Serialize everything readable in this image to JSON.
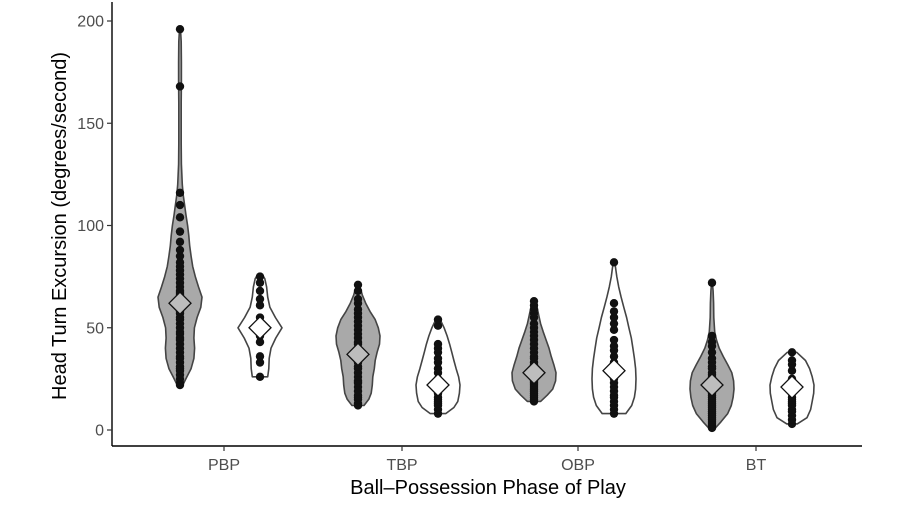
{
  "chart_data": {
    "type": "violin",
    "xlabel": "Ball–Possession Phase of Play",
    "ylabel": "Head Turn Excursion (degrees/second)",
    "categories": [
      "PBP",
      "TBP",
      "OBP",
      "BT"
    ],
    "yticks": [
      0,
      50,
      100,
      150,
      200
    ],
    "ylim": [
      -8,
      205
    ],
    "grid": false,
    "groups": [
      {
        "category": "PBP",
        "series": "grey",
        "fill": "#a9a9a9",
        "mean": 62,
        "min": 22,
        "max": 196,
        "density": [
          [
            22,
            0.12
          ],
          [
            26,
            0.3
          ],
          [
            30,
            0.48
          ],
          [
            35,
            0.6
          ],
          [
            40,
            0.63
          ],
          [
            45,
            0.6
          ],
          [
            50,
            0.62
          ],
          [
            55,
            0.74
          ],
          [
            60,
            0.9
          ],
          [
            65,
            0.95
          ],
          [
            70,
            0.8
          ],
          [
            75,
            0.66
          ],
          [
            80,
            0.55
          ],
          [
            85,
            0.48
          ],
          [
            90,
            0.42
          ],
          [
            95,
            0.38
          ],
          [
            100,
            0.33
          ],
          [
            105,
            0.26
          ],
          [
            110,
            0.2
          ],
          [
            115,
            0.14
          ],
          [
            120,
            0.1
          ],
          [
            130,
            0.06
          ],
          [
            140,
            0.05
          ],
          [
            150,
            0.05
          ],
          [
            160,
            0.05
          ],
          [
            170,
            0.06
          ],
          [
            180,
            0.06
          ],
          [
            190,
            0.05
          ],
          [
            196,
            0.02
          ]
        ],
        "points": [
          22,
          23,
          25,
          27,
          29,
          30,
          31,
          33,
          35,
          36,
          38,
          40,
          42,
          44,
          45,
          47,
          48,
          50,
          52,
          54,
          55,
          57,
          58,
          60,
          61,
          62,
          63,
          64,
          65,
          66,
          67,
          68,
          70,
          72,
          74,
          76,
          78,
          80,
          82,
          85,
          88,
          92,
          97,
          104,
          110,
          116,
          168,
          196
        ]
      },
      {
        "category": "PBP",
        "series": "white",
        "fill": "#ffffff",
        "mean": 50,
        "min": 26,
        "max": 76,
        "density": [
          [
            26,
            0.35
          ],
          [
            30,
            0.4
          ],
          [
            35,
            0.42
          ],
          [
            40,
            0.5
          ],
          [
            45,
            0.72
          ],
          [
            50,
            1.0
          ],
          [
            55,
            0.7
          ],
          [
            60,
            0.45
          ],
          [
            65,
            0.35
          ],
          [
            70,
            0.3
          ],
          [
            74,
            0.22
          ],
          [
            76,
            0.1
          ]
        ],
        "points": [
          26,
          33,
          36,
          43,
          46,
          48,
          50,
          52,
          55,
          61,
          64,
          68,
          72,
          75
        ]
      },
      {
        "category": "TBP",
        "series": "grey",
        "fill": "#a9a9a9",
        "mean": 37,
        "min": 12,
        "max": 71,
        "density": [
          [
            12,
            0.25
          ],
          [
            15,
            0.45
          ],
          [
            18,
            0.55
          ],
          [
            22,
            0.6
          ],
          [
            26,
            0.62
          ],
          [
            30,
            0.68
          ],
          [
            34,
            0.72
          ],
          [
            38,
            0.8
          ],
          [
            42,
            0.9
          ],
          [
            46,
            0.92
          ],
          [
            50,
            0.85
          ],
          [
            54,
            0.72
          ],
          [
            58,
            0.5
          ],
          [
            62,
            0.32
          ],
          [
            66,
            0.18
          ],
          [
            71,
            0.06
          ]
        ],
        "points": [
          12,
          13,
          15,
          16,
          17,
          19,
          21,
          23,
          24,
          26,
          28,
          30,
          31,
          33,
          35,
          36,
          38,
          40,
          42,
          43,
          45,
          47,
          49,
          51,
          53,
          55,
          57,
          59,
          62,
          64,
          68,
          71
        ]
      },
      {
        "category": "TBP",
        "series": "white",
        "fill": "#ffffff",
        "mean": 22,
        "min": 8,
        "max": 54,
        "density": [
          [
            8,
            0.28
          ],
          [
            11,
            0.58
          ],
          [
            14,
            0.72
          ],
          [
            18,
            0.78
          ],
          [
            22,
            0.8
          ],
          [
            26,
            0.75
          ],
          [
            30,
            0.66
          ],
          [
            34,
            0.58
          ],
          [
            38,
            0.5
          ],
          [
            42,
            0.42
          ],
          [
            46,
            0.33
          ],
          [
            50,
            0.22
          ],
          [
            54,
            0.08
          ]
        ],
        "points": [
          8,
          10,
          12,
          13,
          14,
          15,
          16,
          18,
          20,
          22,
          25,
          28,
          30,
          33,
          35,
          38,
          40,
          42,
          51,
          54
        ]
      },
      {
        "category": "OBP",
        "series": "grey",
        "fill": "#a9a9a9",
        "mean": 28,
        "min": 14,
        "max": 63,
        "density": [
          [
            14,
            0.3
          ],
          [
            17,
            0.6
          ],
          [
            20,
            0.85
          ],
          [
            24,
            0.98
          ],
          [
            28,
            1.0
          ],
          [
            32,
            0.9
          ],
          [
            36,
            0.78
          ],
          [
            40,
            0.68
          ],
          [
            44,
            0.55
          ],
          [
            48,
            0.42
          ],
          [
            52,
            0.3
          ],
          [
            56,
            0.22
          ],
          [
            60,
            0.14
          ],
          [
            63,
            0.05
          ]
        ],
        "points": [
          14,
          15,
          16,
          17,
          18,
          19,
          20,
          21,
          22,
          23,
          24,
          25,
          26,
          27,
          28,
          29,
          30,
          31,
          32,
          33,
          35,
          36,
          38,
          40,
          42,
          44,
          46,
          48,
          50,
          52,
          55,
          57,
          59,
          61,
          63
        ]
      },
      {
        "category": "OBP",
        "series": "white",
        "fill": "#ffffff",
        "mean": 29,
        "min": 8,
        "max": 82,
        "density": [
          [
            8,
            0.3
          ],
          [
            12,
            0.45
          ],
          [
            16,
            0.52
          ],
          [
            20,
            0.55
          ],
          [
            25,
            0.56
          ],
          [
            30,
            0.55
          ],
          [
            35,
            0.52
          ],
          [
            40,
            0.48
          ],
          [
            45,
            0.44
          ],
          [
            50,
            0.38
          ],
          [
            55,
            0.32
          ],
          [
            60,
            0.25
          ],
          [
            65,
            0.18
          ],
          [
            70,
            0.12
          ],
          [
            75,
            0.07
          ],
          [
            82,
            0.02
          ]
        ],
        "points": [
          8,
          10,
          12,
          14,
          16,
          17,
          19,
          21,
          23,
          25,
          27,
          30,
          33,
          36,
          39,
          41,
          44,
          49,
          52,
          55,
          58,
          62,
          82
        ]
      },
      {
        "category": "BT",
        "series": "grey",
        "fill": "#a9a9a9",
        "mean": 22,
        "min": 1,
        "max": 72,
        "density": [
          [
            1,
            0.15
          ],
          [
            4,
            0.4
          ],
          [
            8,
            0.7
          ],
          [
            12,
            0.86
          ],
          [
            16,
            0.94
          ],
          [
            20,
            0.98
          ],
          [
            24,
            0.96
          ],
          [
            28,
            0.88
          ],
          [
            32,
            0.7
          ],
          [
            36,
            0.5
          ],
          [
            40,
            0.32
          ],
          [
            44,
            0.2
          ],
          [
            48,
            0.12
          ],
          [
            55,
            0.08
          ],
          [
            62,
            0.07
          ],
          [
            68,
            0.05
          ],
          [
            72,
            0.02
          ]
        ],
        "points": [
          1,
          2,
          3,
          4,
          5,
          6,
          7,
          8,
          9,
          10,
          11,
          12,
          13,
          14,
          15,
          16,
          17,
          18,
          19,
          20,
          21,
          22,
          23,
          24,
          25,
          26,
          27,
          28,
          30,
          31,
          33,
          35,
          38,
          41,
          43,
          46,
          72
        ]
      },
      {
        "category": "BT",
        "series": "white",
        "fill": "#ffffff",
        "mean": 21,
        "min": 3,
        "max": 38,
        "density": [
          [
            3,
            0.2
          ],
          [
            6,
            0.58
          ],
          [
            10,
            0.72
          ],
          [
            14,
            0.78
          ],
          [
            18,
            0.84
          ],
          [
            22,
            0.85
          ],
          [
            26,
            0.78
          ],
          [
            30,
            0.68
          ],
          [
            34,
            0.52
          ],
          [
            38,
            0.18
          ]
        ],
        "points": [
          3,
          5,
          7,
          9,
          10,
          12,
          13,
          14,
          15,
          16,
          18,
          20,
          22,
          25,
          29,
          32,
          34,
          38
        ]
      }
    ]
  }
}
